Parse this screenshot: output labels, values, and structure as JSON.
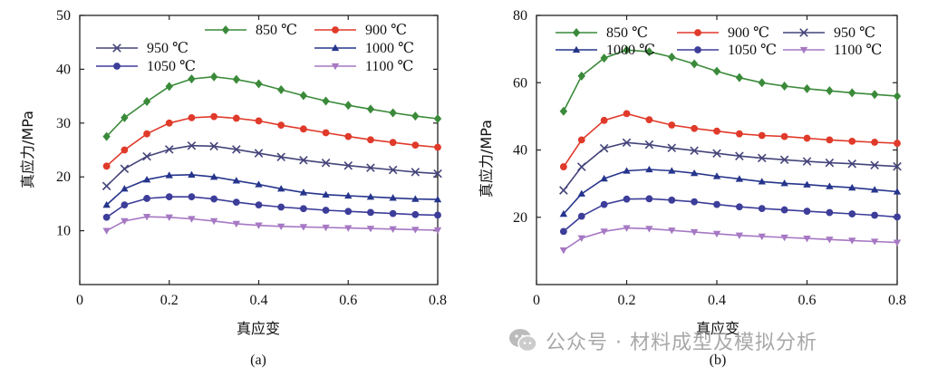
{
  "chart_data": [
    {
      "type": "line",
      "panel_label": "(a)",
      "xlabel": "真应变",
      "ylabel": "真应力/MPa",
      "xlim": [
        0,
        0.8
      ],
      "ylim": [
        0,
        50
      ],
      "xticks": [
        0,
        0.2,
        0.4,
        0.6,
        0.8
      ],
      "xtick_labels": [
        "0",
        "0.2",
        "0.4",
        "0.6",
        "0.8"
      ],
      "yticks": [
        10,
        20,
        30,
        40,
        50
      ],
      "ytick_labels": [
        "10",
        "20",
        "30",
        "40",
        "50"
      ],
      "x": [
        0.06,
        0.1,
        0.15,
        0.2,
        0.25,
        0.3,
        0.35,
        0.4,
        0.45,
        0.5,
        0.55,
        0.6,
        0.65,
        0.7,
        0.75,
        0.8
      ],
      "series": [
        {
          "name": "850 ℃",
          "color": "#3a8a3a",
          "marker": "diamond",
          "values": [
            27.5,
            31.0,
            34.0,
            36.8,
            38.2,
            38.6,
            38.1,
            37.3,
            36.2,
            35.1,
            34.1,
            33.3,
            32.6,
            31.9,
            31.3,
            30.8
          ]
        },
        {
          "name": "900 ℃",
          "color": "#e03a2a",
          "marker": "circle",
          "values": [
            22.0,
            25.0,
            28.0,
            30.0,
            31.0,
            31.2,
            30.9,
            30.4,
            29.6,
            28.9,
            28.2,
            27.5,
            26.9,
            26.4,
            25.9,
            25.5
          ]
        },
        {
          "name": "950 ℃",
          "color": "#44447a",
          "marker": "cross",
          "values": [
            18.3,
            21.5,
            23.8,
            25.1,
            25.8,
            25.7,
            25.1,
            24.4,
            23.7,
            23.1,
            22.6,
            22.1,
            21.7,
            21.3,
            20.9,
            20.6
          ]
        },
        {
          "name": "1000 ℃",
          "color": "#26358c",
          "marker": "triangle",
          "values": [
            14.8,
            17.8,
            19.5,
            20.3,
            20.4,
            20.0,
            19.3,
            18.6,
            17.8,
            17.1,
            16.7,
            16.5,
            16.3,
            16.1,
            15.9,
            15.8
          ]
        },
        {
          "name": "1050 ℃",
          "color": "#3d3d9a",
          "marker": "circle",
          "values": [
            12.5,
            14.8,
            16.0,
            16.3,
            16.3,
            15.9,
            15.3,
            14.8,
            14.4,
            14.1,
            13.8,
            13.6,
            13.4,
            13.2,
            13.0,
            12.9
          ]
        },
        {
          "name": "1100 ℃",
          "color": "#a678c4",
          "marker": "triangle-down",
          "values": [
            10.0,
            11.8,
            12.6,
            12.5,
            12.2,
            11.8,
            11.3,
            11.0,
            10.8,
            10.7,
            10.6,
            10.5,
            10.4,
            10.3,
            10.2,
            10.1
          ]
        }
      ]
    },
    {
      "type": "line",
      "panel_label": "(b)",
      "xlabel": "真应变",
      "ylabel": "真应力/MPa",
      "xlim": [
        0,
        0.8
      ],
      "ylim": [
        0,
        80
      ],
      "xticks": [
        0,
        0.2,
        0.4,
        0.6,
        0.8
      ],
      "xtick_labels": [
        "0",
        "0.2",
        "0.4",
        "0.6",
        "0.8"
      ],
      "yticks": [
        20,
        40,
        60,
        80
      ],
      "ytick_labels": [
        "20",
        "40",
        "60",
        "80"
      ],
      "x": [
        0.06,
        0.1,
        0.15,
        0.2,
        0.25,
        0.3,
        0.35,
        0.4,
        0.45,
        0.5,
        0.55,
        0.6,
        0.65,
        0.7,
        0.75,
        0.8
      ],
      "series": [
        {
          "name": "850 ℃",
          "color": "#3a8a3a",
          "marker": "diamond",
          "values": [
            51.5,
            62.0,
            67.3,
            69.7,
            69.2,
            67.6,
            65.6,
            63.4,
            61.5,
            60.0,
            59.0,
            58.2,
            57.6,
            57.0,
            56.5,
            56.0
          ]
        },
        {
          "name": "900 ℃",
          "color": "#e03a2a",
          "marker": "circle",
          "values": [
            35.0,
            43.0,
            48.8,
            50.8,
            49.0,
            47.4,
            46.4,
            45.6,
            44.8,
            44.3,
            44.0,
            43.5,
            43.0,
            42.6,
            42.3,
            42.0
          ]
        },
        {
          "name": "950 ℃",
          "color": "#44447a",
          "marker": "cross",
          "values": [
            28.0,
            35.0,
            40.5,
            42.2,
            41.6,
            40.6,
            39.8,
            39.0,
            38.2,
            37.6,
            37.1,
            36.6,
            36.2,
            35.9,
            35.5,
            35.1
          ]
        },
        {
          "name": "1000 ℃",
          "color": "#26358c",
          "marker": "triangle",
          "values": [
            21.0,
            27.0,
            31.5,
            33.8,
            34.2,
            33.8,
            33.1,
            32.2,
            31.4,
            30.6,
            30.1,
            29.7,
            29.2,
            28.8,
            28.2,
            27.6
          ]
        },
        {
          "name": "1050 ℃",
          "color": "#3d3d9a",
          "marker": "circle",
          "values": [
            15.8,
            20.3,
            23.8,
            25.4,
            25.5,
            25.1,
            24.6,
            23.8,
            23.1,
            22.6,
            22.2,
            21.8,
            21.4,
            21.0,
            20.6,
            20.1
          ]
        },
        {
          "name": "1100 ℃",
          "color": "#a678c4",
          "marker": "triangle-down",
          "values": [
            10.2,
            13.8,
            15.8,
            16.8,
            16.6,
            16.1,
            15.6,
            15.1,
            14.6,
            14.3,
            14.0,
            13.7,
            13.4,
            13.1,
            12.8,
            12.5
          ]
        }
      ]
    }
  ],
  "watermark": {
    "text": "公众号 · 材料成型及模拟分析",
    "icon": "wechat-icon"
  }
}
